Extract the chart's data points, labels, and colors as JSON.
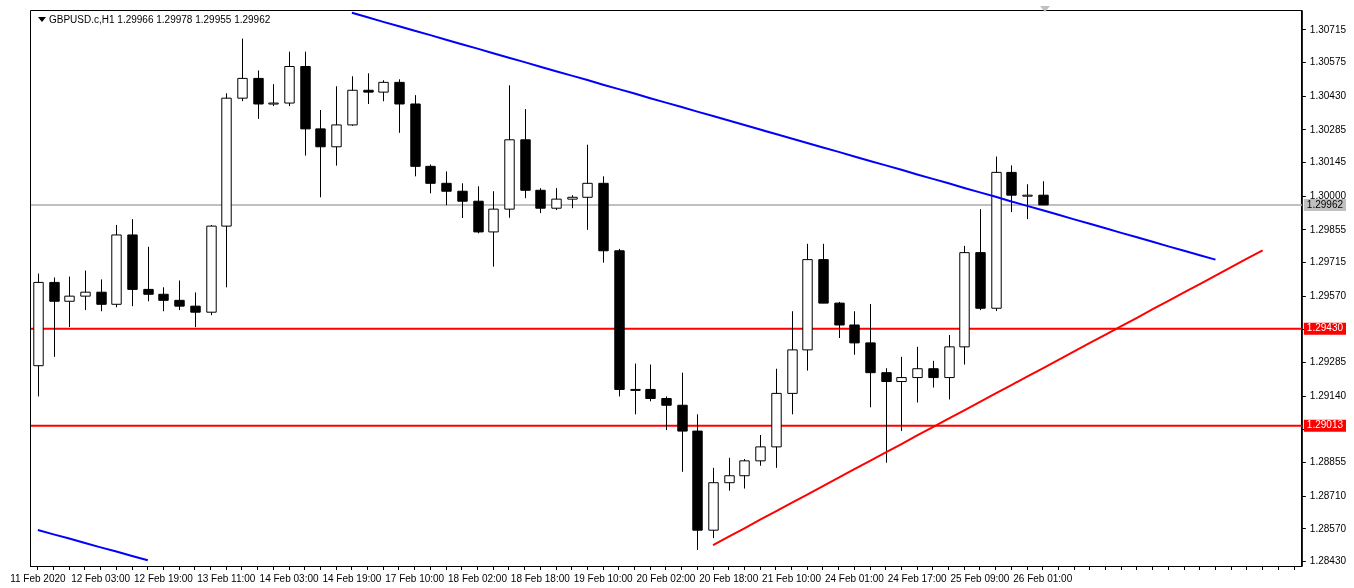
{
  "chart_data": {
    "type": "candlestick",
    "title": "GBPUSD.c,H1 1.29966 1.29978 1.29955 1.29962",
    "colors": [
      "#ffffff",
      "#000000",
      "#ffffff",
      "#ffffff",
      "#000000",
      "#ffffff",
      "#000000",
      "#000000",
      "#000000",
      "#000000",
      "#000000",
      "#ffffff",
      "#ffffff",
      "#ffffff",
      "#000000",
      "#ffffff",
      "#ffffff",
      "#000000",
      "#000000",
      "#ffffff",
      "#ffffff",
      "#000000",
      "#ffffff",
      "#000000",
      "#000000",
      "#000000",
      "#000000",
      "#000000",
      "#000000",
      "#ffffff",
      "#ffffff",
      "#000000",
      "#000000",
      "#ffffff",
      "#ffffff",
      "#ffffff",
      "#000000",
      "#000000",
      "#ffffff",
      "#000000",
      "#000000",
      "#000000",
      "#000000",
      "#ffffff",
      "#ffffff",
      "#ffffff",
      "#ffffff",
      "#ffffff",
      "#ffffff",
      "#ffffff",
      "#000000",
      "#000000",
      "#000000",
      "#000000",
      "#000000",
      "#ffffff",
      "#ffffff",
      "#000000",
      "#ffffff",
      "#ffffff",
      "#000000",
      "#ffffff",
      "#000000",
      "#ffffff",
      "#000000",
      null,
      null,
      null,
      null,
      null,
      null,
      null,
      null,
      null,
      null,
      null,
      null,
      null,
      null,
      null,
      null
    ],
    "grid": false,
    "legend": false,
    "categories": [
      "11 Feb 2020",
      null,
      null,
      null,
      "12 Feb 03:00",
      null,
      null,
      null,
      "12 Feb 19:00",
      null,
      null,
      null,
      "13 Feb 11:00",
      null,
      null,
      null,
      "14 Feb 03:00",
      null,
      null,
      null,
      "14 Feb 19:00",
      null,
      null,
      null,
      "17 Feb 10:00",
      null,
      null,
      null,
      "18 Feb 02:00",
      null,
      null,
      null,
      "18 Feb 18:00",
      null,
      null,
      null,
      "19 Feb 10:00",
      null,
      null,
      null,
      "20 Feb 02:00",
      null,
      null,
      null,
      "20 Feb 18:00",
      null,
      null,
      null,
      "21 Feb 10:00",
      null,
      null,
      null,
      "24 Feb 01:00",
      null,
      null,
      null,
      "24 Feb 17:00",
      null,
      null,
      null,
      "25 Feb 09:00",
      null,
      null,
      null,
      "26 Feb 01:00",
      null,
      null,
      null,
      null,
      null,
      null,
      null,
      null,
      null,
      null,
      null,
      null,
      null,
      null,
      null,
      null
    ],
    "ylim": [
      1.2841,
      1.308
    ],
    "yticks": [
      1.30715,
      1.30575,
      {
        "value": 1.3043,
        "label": "1.30430"
      },
      1.30285,
      1.30145,
      {
        "value": 1.3,
        "label": "1.30000"
      },
      1.29855,
      1.29715,
      {
        "value": 1.2957,
        "label": "1.29570"
      },
      {
        "value": 1.29425,
        "label": null
      },
      1.29285,
      {
        "value": 1.2914,
        "label": "1.29140"
      },
      {
        "value": 1.28995,
        "label": null
      },
      1.28855,
      {
        "value": 1.2871,
        "label": "1.28710"
      },
      {
        "value": 1.2857,
        "label": "1.28570"
      },
      {
        "value": 1.2843,
        "label": "1.28430"
      }
    ],
    "ohlc": [
      [
        1.29271,
        1.29667,
        1.29139,
        1.29629
      ],
      [
        1.29629,
        1.2965,
        1.29309,
        1.29548
      ],
      [
        1.29548,
        1.29654,
        1.29437,
        1.2957
      ],
      [
        1.2957,
        1.2968,
        1.2951,
        1.29587
      ],
      [
        1.29587,
        1.29642,
        1.29505,
        1.29535
      ],
      [
        1.29535,
        1.29876,
        1.29522,
        1.29833
      ],
      [
        1.29833,
        1.29901,
        1.29527,
        1.29599
      ],
      [
        1.29599,
        1.29782,
        1.29548,
        1.29578
      ],
      [
        1.29578,
        1.29608,
        1.29505,
        1.29552
      ],
      [
        1.29552,
        1.29637,
        1.2951,
        1.29527
      ],
      [
        1.29527,
        1.29586,
        1.29437,
        1.29501
      ],
      [
        1.29501,
        1.29876,
        1.29488,
        1.29871
      ],
      [
        1.29871,
        1.30442,
        1.29608,
        1.30421
      ],
      [
        1.30421,
        1.30677,
        1.30408,
        1.30506
      ],
      [
        1.30506,
        1.3054,
        1.30332,
        1.30396
      ],
      [
        1.30396,
        1.30481,
        1.30387,
        1.304
      ],
      [
        1.304,
        1.30621,
        1.30387,
        1.30557
      ],
      [
        1.30557,
        1.30621,
        1.30174,
        1.30289
      ],
      [
        1.30289,
        1.3037,
        1.29995,
        1.30212
      ],
      [
        1.30212,
        1.30472,
        1.30131,
        1.30306
      ],
      [
        1.30306,
        1.30515,
        1.30302,
        1.30455
      ],
      [
        1.30455,
        1.30528,
        1.30396,
        1.30447
      ],
      [
        1.30447,
        1.30498,
        1.30408,
        1.30489
      ],
      [
        1.30489,
        1.30502,
        1.30272,
        1.30396
      ],
      [
        1.30396,
        1.30434,
        1.30085,
        1.30128
      ],
      [
        1.30128,
        1.30136,
        1.30012,
        1.30055
      ],
      [
        1.30055,
        1.30106,
        1.29961,
        1.30021
      ],
      [
        1.30021,
        1.30055,
        1.29906,
        1.29978
      ],
      [
        1.29978,
        1.30042,
        1.2984,
        1.29846
      ],
      [
        1.29846,
        1.30021,
        1.29697,
        1.29944
      ],
      [
        1.29944,
        1.30476,
        1.29907,
        1.30242
      ],
      [
        1.30242,
        1.30374,
        1.29991,
        1.30025
      ],
      [
        1.30025,
        1.30034,
        1.29927,
        1.29948
      ],
      [
        1.29948,
        1.30034,
        1.2994,
        1.29987
      ],
      [
        1.29987,
        1.30004,
        1.29948,
        1.29995
      ],
      [
        1.29995,
        1.30221,
        1.29855,
        1.30055
      ],
      [
        1.30055,
        1.30085,
        1.29714,
        1.29765
      ],
      [
        1.29765,
        1.29773,
        1.29139,
        1.29169
      ],
      [
        1.29169,
        1.2928,
        1.29062,
        1.29169
      ],
      [
        1.29169,
        1.29276,
        1.29118,
        1.2913
      ],
      [
        1.2913,
        1.29139,
        1.28994,
        1.29101
      ],
      [
        1.29101,
        1.29241,
        1.28815,
        1.2899
      ],
      [
        1.2899,
        1.29062,
        1.28479,
        1.28564
      ],
      [
        1.28564,
        1.28832,
        1.2853,
        1.28768
      ],
      [
        1.28768,
        1.28875,
        1.28734,
        1.28798
      ],
      [
        1.28798,
        1.2887,
        1.28743,
        1.28862
      ],
      [
        1.28862,
        1.28973,
        1.28841,
        1.28922
      ],
      [
        1.28922,
        1.29258,
        1.28832,
        1.29152
      ],
      [
        1.29152,
        1.29505,
        1.29062,
        1.29339
      ],
      [
        1.29339,
        1.29795,
        1.2925,
        1.29727
      ],
      [
        1.29727,
        1.29795,
        1.2954,
        1.2954
      ],
      [
        1.2954,
        1.29545,
        1.2939,
        1.29446
      ],
      [
        1.29446,
        1.29505,
        1.29318,
        1.29369
      ],
      [
        1.29369,
        1.29536,
        1.29092,
        1.29241
      ],
      [
        1.29241,
        1.2926,
        1.28854,
        1.29203
      ],
      [
        1.29203,
        1.29309,
        1.2899,
        1.2922
      ],
      [
        1.2922,
        1.29352,
        1.29113,
        1.29258
      ],
      [
        1.29258,
        1.29292,
        1.29177,
        1.2922
      ],
      [
        1.2922,
        1.29403,
        1.29126,
        1.29352
      ],
      [
        1.29352,
        1.29786,
        1.29276,
        1.29757
      ],
      [
        1.29757,
        1.29944,
        1.2951,
        1.29518
      ],
      [
        1.29518,
        1.3017,
        1.29506,
        1.30102
      ],
      [
        1.30102,
        1.30132,
        1.29931,
        1.30004
      ],
      [
        1.30004,
        1.30051,
        1.29901,
        1.30004
      ],
      [
        1.30004,
        1.30064,
        1.29961,
        1.29962
      ],
      null,
      null,
      null,
      null,
      null,
      null,
      null,
      null,
      null,
      null,
      null,
      null,
      null,
      null,
      null,
      null
    ],
    "series": [
      {
        "type": "line",
        "color": "#0000ff",
        "values": [
          null,
          null,
          null,
          null,
          null,
          null,
          null,
          null,
          null,
          null,
          null,
          null,
          null,
          null,
          null,
          null,
          null,
          null,
          null,
          null,
          1.30788,
          1.30769,
          1.30749,
          1.3073,
          1.30711,
          1.30692,
          1.30672,
          1.30653,
          1.30634,
          1.30614,
          1.30595,
          1.30576,
          1.30556,
          1.30537,
          1.30518,
          1.30499,
          1.30479,
          1.3046,
          1.30441,
          1.30421,
          1.30402,
          1.30383,
          1.30363,
          1.30344,
          1.30325,
          1.30306,
          1.30286,
          1.30267,
          1.30248,
          1.30228,
          1.30209,
          1.3019,
          1.3017,
          1.30151,
          1.30132,
          1.30113,
          1.30093,
          1.30074,
          1.30055,
          1.30035,
          1.30016,
          1.29997,
          1.29977,
          1.29958,
          1.29939,
          1.2992,
          1.299,
          1.29881,
          1.29862,
          1.29842,
          1.29823,
          1.29804,
          1.29784,
          1.29765,
          1.29746,
          1.29727,
          null,
          null,
          null,
          null,
          null
        ]
      },
      {
        "type": "line",
        "color": "#0000ff",
        "values": [
          1.28565,
          1.28546,
          1.28528,
          1.28509,
          1.2849,
          1.28472,
          1.28453,
          1.28435,
          null,
          null,
          null,
          null,
          null,
          null,
          null,
          null,
          null,
          null,
          null,
          null,
          null,
          null,
          null,
          null,
          null,
          null,
          null,
          null,
          null,
          null,
          null,
          null,
          null,
          null,
          null,
          null,
          null,
          null,
          null,
          null,
          null,
          null,
          null,
          null,
          null,
          null,
          null,
          null,
          null,
          null,
          null,
          null,
          null,
          null,
          null,
          null,
          null,
          null,
          null,
          null,
          null,
          null,
          null,
          null,
          null,
          null,
          null,
          null,
          null,
          null,
          null,
          null,
          null,
          null,
          null,
          null,
          null,
          null,
          null,
          null,
          null
        ]
      },
      {
        "type": "line",
        "color": "#ff0000",
        "values": [
          null,
          null,
          null,
          null,
          null,
          null,
          null,
          null,
          null,
          null,
          null,
          null,
          null,
          null,
          null,
          null,
          null,
          null,
          null,
          null,
          null,
          null,
          null,
          null,
          null,
          null,
          null,
          null,
          null,
          null,
          null,
          null,
          null,
          null,
          null,
          null,
          null,
          null,
          null,
          null,
          null,
          null,
          null,
          1.285,
          1.28536,
          1.28572,
          1.28609,
          1.28645,
          1.28681,
          1.28717,
          1.28753,
          1.2879,
          1.28826,
          1.28862,
          1.28898,
          1.28934,
          1.28971,
          1.29007,
          1.29043,
          1.29079,
          1.29115,
          1.29152,
          1.29188,
          1.29224,
          1.2926,
          1.29296,
          1.29333,
          1.29369,
          1.29405,
          1.29441,
          1.29477,
          1.29514,
          1.2955,
          1.29586,
          1.29622,
          1.29658,
          1.29695,
          1.29731,
          1.29767,
          null,
          null
        ]
      }
    ],
    "ref_lines": [
      {
        "axis": "y",
        "value": 1.2943,
        "label": "1.29430",
        "color": "#ff0000"
      },
      {
        "axis": "y",
        "value": 1.29013,
        "label": "1.29013",
        "color": "#ff0000"
      },
      {
        "axis": "y",
        "value": 1.29962,
        "label": "1.29962",
        "color": "#c0c0c0"
      }
    ]
  }
}
